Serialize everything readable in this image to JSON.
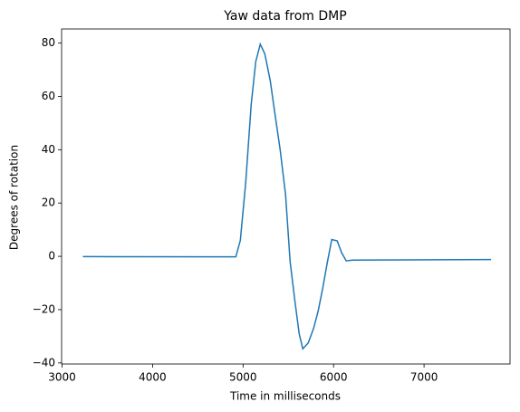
{
  "chart_data": {
    "type": "line",
    "title": "Yaw data from DMP",
    "x_label": "Time in milliseconds",
    "y_label": "Degrees of rotation",
    "x": [
      3230,
      4920,
      4970,
      5030,
      5090,
      5140,
      5190,
      5240,
      5300,
      5350,
      5410,
      5470,
      5520,
      5570,
      5620,
      5660,
      5720,
      5780,
      5830,
      5880,
      5930,
      5980,
      6040,
      6090,
      6140,
      6210,
      7740
    ],
    "series": [
      {
        "color": "#1f77b4",
        "values": [
          -0.1,
          -0.2,
          6,
          28,
          57,
          73,
          79.6,
          76,
          66,
          54,
          40,
          23,
          -2,
          -16,
          -29,
          -34.7,
          -32.5,
          -27,
          -20.5,
          -12,
          -2.5,
          6.3,
          5.8,
          1.3,
          -1.7,
          -1.4,
          -1.2
        ]
      }
    ],
    "xlim": [
      2995,
      7950
    ],
    "xticks": [
      3000,
      4000,
      5000,
      6000,
      7000
    ],
    "ylim": [
      -40.4,
      85.3
    ],
    "yticks": [
      {
        "value": -40,
        "label": "−40"
      },
      {
        "value": -20,
        "label": "−20"
      },
      0,
      20,
      40,
      60,
      80
    ]
  }
}
